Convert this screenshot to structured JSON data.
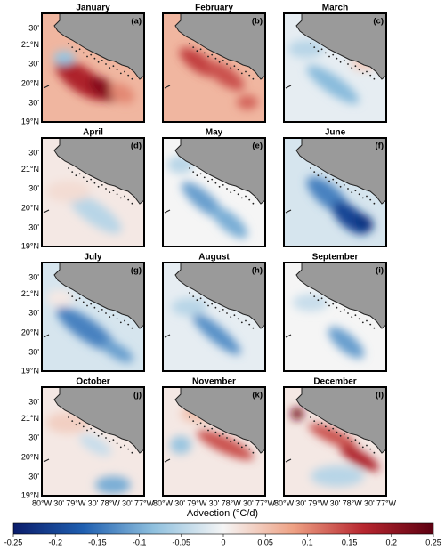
{
  "panels": [
    {
      "title": "January",
      "label": "(a)"
    },
    {
      "title": "February",
      "label": "(b)"
    },
    {
      "title": "March",
      "label": "(c)"
    },
    {
      "title": "April",
      "label": "(d)"
    },
    {
      "title": "May",
      "label": "(e)"
    },
    {
      "title": "June",
      "label": "(f)"
    },
    {
      "title": "July",
      "label": "(g)"
    },
    {
      "title": "August",
      "label": "(h)"
    },
    {
      "title": "September",
      "label": "(i)"
    },
    {
      "title": "October",
      "label": "(j)"
    },
    {
      "title": "November",
      "label": "(k)"
    },
    {
      "title": "December",
      "label": "(l)"
    }
  ],
  "y_axis_labels": [
    "30'",
    "21°N",
    "30'",
    "20°N",
    "30'",
    "19°N"
  ],
  "x_axis_labels": [
    "80°W",
    "30'",
    "79°W",
    "30'",
    "78°W",
    "30'",
    "77°W"
  ],
  "colorbar": {
    "label": "Advection (°C/d)",
    "range": [
      -0.25,
      0.25
    ],
    "ticks": [
      -0.25,
      -0.2,
      -0.15,
      -0.1,
      -0.05,
      0,
      0.05,
      0.1,
      0.15,
      0.2,
      0.25
    ],
    "colors": [
      "#0b1d6b",
      "#1f5fb0",
      "#8fc0de",
      "#f5f5f5",
      "#eea184",
      "#b7262f",
      "#5c0011"
    ]
  }
}
